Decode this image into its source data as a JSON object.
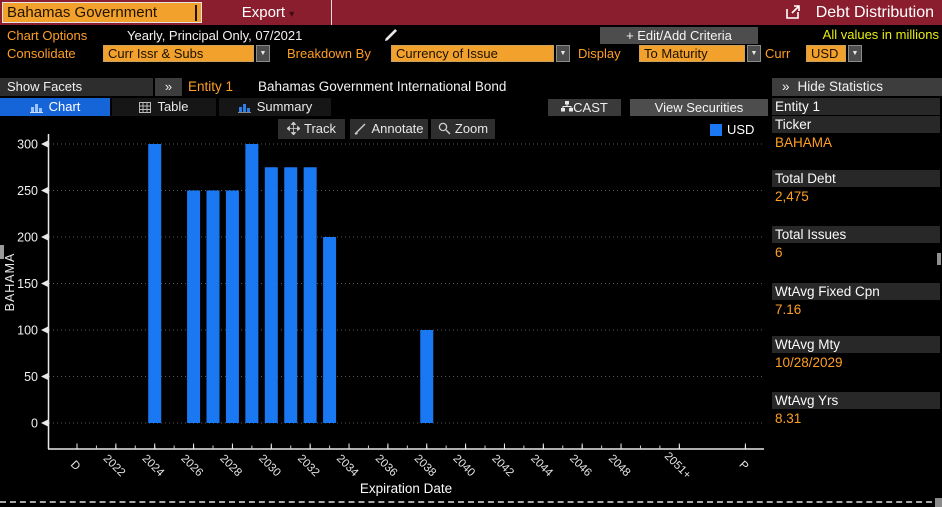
{
  "title_bar": {
    "ticker": "Bahamas Government",
    "export_label": "Export",
    "export_caret": "▾",
    "app_title": "Debt Distribution"
  },
  "options_row": {
    "chart_options_label": "Chart Options",
    "chart_options_value": "Yearly, Principal Only, 07/2021",
    "edit_criteria_label": "+ Edit/Add Criteria",
    "values_note": "All values in millions"
  },
  "filter_row": {
    "consolidate_label": "Consolidate",
    "consolidate_value": "Curr Issr & Subs",
    "breakdown_label": "Breakdown By",
    "breakdown_value": "Currency of Issue",
    "display_label": "Display",
    "display_value": "To Maturity",
    "curr_label": "Curr",
    "curr_value": "USD",
    "arrow": "▼"
  },
  "facets_row": {
    "show_facets": "Show Facets",
    "expand_chevron": "»",
    "entity_label": "Entity 1",
    "entity_name": "Bahamas Government International Bond"
  },
  "tabs": [
    {
      "label": "Chart",
      "selected": true
    },
    {
      "label": "Table",
      "selected": false
    },
    {
      "label": "Summary",
      "selected": false
    }
  ],
  "actions": {
    "cast": "CAST",
    "view_securities": "View Securities"
  },
  "chart_toolbar": {
    "track": "Track",
    "annotate": "Annotate",
    "zoom": "Zoom"
  },
  "stats_panel": {
    "collapse_chevron": "»",
    "header": "Hide Statistics",
    "entity_header": "Entity 1",
    "rows": [
      {
        "label": "Ticker",
        "value": "BAHAMA"
      },
      {
        "label": "Total Debt",
        "value": "2,475"
      },
      {
        "label": "Total Issues",
        "value": "6"
      },
      {
        "label": "WtAvg Fixed Cpn",
        "value": "7.16"
      },
      {
        "label": "WtAvg Mty",
        "value": "10/28/2029"
      },
      {
        "label": "WtAvg Yrs",
        "value": "8.31"
      }
    ]
  },
  "chart_data": {
    "type": "bar",
    "title": "",
    "xlabel": "Expiration Date",
    "ylabel": "BAHAMA",
    "legend": [
      "USD"
    ],
    "legend_position": "top-right",
    "grid": "dotted horizontal",
    "bar_color": "#1a78f2",
    "ylim": [
      0,
      300
    ],
    "yticks": [
      0,
      50,
      100,
      150,
      200,
      250,
      300
    ],
    "xticks": [
      "D",
      "2022",
      "2024",
      "2026",
      "2028",
      "2030",
      "2032",
      "2034",
      "2036",
      "2038",
      "2040",
      "2042",
      "2044",
      "2046",
      "2048",
      "2051+",
      "P"
    ],
    "series": [
      {
        "name": "USD",
        "points": [
          {
            "x": "2024",
            "y": 300
          },
          {
            "x": "2026",
            "y": 250
          },
          {
            "x": "2027",
            "y": 250
          },
          {
            "x": "2028",
            "y": 250
          },
          {
            "x": "2029",
            "y": 300
          },
          {
            "x": "2030",
            "y": 275
          },
          {
            "x": "2031",
            "y": 275
          },
          {
            "x": "2032",
            "y": 275
          },
          {
            "x": "2033",
            "y": 200
          },
          {
            "x": "2038",
            "y": 100
          }
        ]
      }
    ]
  }
}
